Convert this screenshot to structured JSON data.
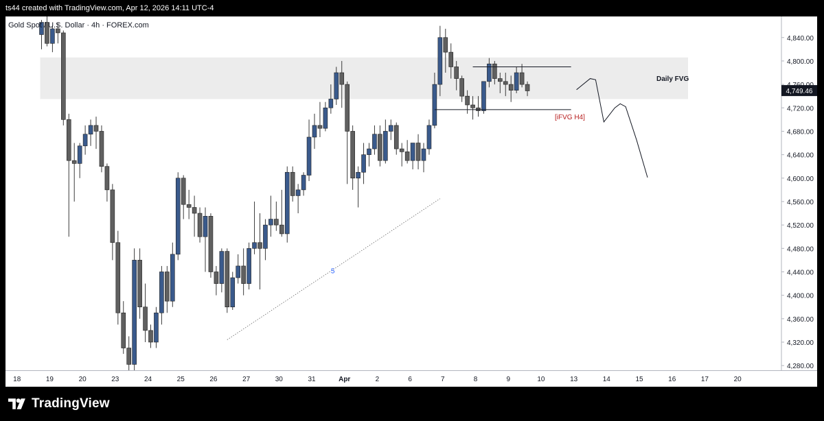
{
  "header": {
    "credit": "ts44 created with TradingView.com, Apr 12, 2026 14:11 UTC-4"
  },
  "symbol": {
    "title": "Gold Spot / U.S. Dollar · 4h · FOREX.com"
  },
  "colors": {
    "bull": "#3a5a8c",
    "bear": "#606060",
    "wick": "#3a3a3a",
    "zone": "#ececec",
    "ifvg": "#b71c1c"
  },
  "annotations": {
    "zone_label": "Daily FVG",
    "ifvg_label": "iFVG H4",
    "channel_label": "5"
  },
  "price_tag": "4,749.46",
  "branding": {
    "name": "TradingView",
    "logo": "tradingview-logo-icon"
  },
  "chart_data": {
    "type": "candlestick",
    "y_axis": {
      "range": [
        4272,
        4876
      ],
      "ticks": [
        4280,
        4320,
        4360,
        4400,
        4440,
        4480,
        4520,
        4560,
        4600,
        4640,
        4680,
        4720,
        4760,
        4800,
        4840
      ],
      "tick_labels": [
        "4,280.00",
        "4,320.00",
        "4,360.00",
        "4,400.00",
        "4,440.00",
        "4,480.00",
        "4,520.00",
        "4,560.00",
        "4,600.00",
        "4,640.00",
        "4,680.00",
        "4,720.00",
        "4,760.00",
        "4,800.00",
        "4,840.00"
      ]
    },
    "x_axis": {
      "labels": [
        {
          "text": "18",
          "idx": -4.5
        },
        {
          "text": "19",
          "idx": 1.5
        },
        {
          "text": "20",
          "idx": 7.5
        },
        {
          "text": "23",
          "idx": 13.5
        },
        {
          "text": "24",
          "idx": 19.5
        },
        {
          "text": "25",
          "idx": 25.5
        },
        {
          "text": "26",
          "idx": 31.5
        },
        {
          "text": "27",
          "idx": 37.5
        },
        {
          "text": "30",
          "idx": 43.5
        },
        {
          "text": "31",
          "idx": 49.5
        },
        {
          "text": "Apr",
          "idx": 55.5,
          "bold": true
        },
        {
          "text": "2",
          "idx": 61.5
        },
        {
          "text": "6",
          "idx": 67.5
        },
        {
          "text": "7",
          "idx": 73.5
        },
        {
          "text": "8",
          "idx": 79.5
        },
        {
          "text": "9",
          "idx": 85.5
        },
        {
          "text": "10",
          "idx": 91.5
        },
        {
          "text": "13",
          "idx": 97.5
        },
        {
          "text": "14",
          "idx": 103.5
        },
        {
          "text": "15",
          "idx": 109.5
        },
        {
          "text": "16",
          "idx": 115.5
        },
        {
          "text": "17",
          "idx": 121.5
        },
        {
          "text": "20",
          "idx": 127.5
        }
      ]
    },
    "candles": [
      [
        4845,
        4870,
        4820,
        4866
      ],
      [
        4866,
        4876,
        4825,
        4830
      ],
      [
        4830,
        4860,
        4815,
        4855
      ],
      [
        4855,
        4865,
        4830,
        4848
      ],
      [
        4848,
        4852,
        4690,
        4700
      ],
      [
        4700,
        4710,
        4500,
        4630
      ],
      [
        4630,
        4660,
        4560,
        4625
      ],
      [
        4625,
        4660,
        4600,
        4655
      ],
      [
        4655,
        4690,
        4640,
        4675
      ],
      [
        4675,
        4700,
        4655,
        4690
      ],
      [
        4690,
        4705,
        4650,
        4680
      ],
      [
        4680,
        4690,
        4610,
        4620
      ],
      [
        4620,
        4625,
        4560,
        4580
      ],
      [
        4580,
        4590,
        4460,
        4490
      ],
      [
        4490,
        4510,
        4350,
        4370
      ],
      [
        4370,
        4390,
        4300,
        4310
      ],
      [
        4310,
        4330,
        4270,
        4282
      ],
      [
        4282,
        4480,
        4270,
        4460
      ],
      [
        4460,
        4480,
        4360,
        4380
      ],
      [
        4380,
        4420,
        4320,
        4340
      ],
      [
        4340,
        4350,
        4310,
        4320
      ],
      [
        4320,
        4380,
        4310,
        4370
      ],
      [
        4370,
        4450,
        4350,
        4440
      ],
      [
        4440,
        4450,
        4370,
        4390
      ],
      [
        4390,
        4490,
        4380,
        4470
      ],
      [
        4470,
        4610,
        4460,
        4600
      ],
      [
        4600,
        4605,
        4530,
        4555
      ],
      [
        4555,
        4580,
        4530,
        4550
      ],
      [
        4550,
        4570,
        4500,
        4540
      ],
      [
        4540,
        4550,
        4490,
        4500
      ],
      [
        4500,
        4550,
        4440,
        4535
      ],
      [
        4535,
        4540,
        4430,
        4440
      ],
      [
        4440,
        4450,
        4400,
        4420
      ],
      [
        4420,
        4480,
        4405,
        4475
      ],
      [
        4475,
        4480,
        4370,
        4380
      ],
      [
        4380,
        4440,
        4375,
        4430
      ],
      [
        4430,
        4470,
        4420,
        4450
      ],
      [
        4450,
        4480,
        4400,
        4420
      ],
      [
        4420,
        4490,
        4410,
        4480
      ],
      [
        4480,
        4560,
        4470,
        4490
      ],
      [
        4490,
        4540,
        4410,
        4480
      ],
      [
        4480,
        4530,
        4460,
        4520
      ],
      [
        4520,
        4570,
        4500,
        4530
      ],
      [
        4530,
        4560,
        4510,
        4520
      ],
      [
        4520,
        4580,
        4500,
        4505
      ],
      [
        4505,
        4620,
        4490,
        4610
      ],
      [
        4610,
        4620,
        4560,
        4570
      ],
      [
        4570,
        4590,
        4540,
        4580
      ],
      [
        4580,
        4610,
        4570,
        4605
      ],
      [
        4605,
        4700,
        4595,
        4670
      ],
      [
        4670,
        4710,
        4650,
        4690
      ],
      [
        4690,
        4730,
        4670,
        4685
      ],
      [
        4685,
        4730,
        4680,
        4720
      ],
      [
        4720,
        4760,
        4710,
        4735
      ],
      [
        4735,
        4790,
        4725,
        4780
      ],
      [
        4780,
        4800,
        4720,
        4760
      ],
      [
        4760,
        4765,
        4590,
        4680
      ],
      [
        4680,
        4690,
        4580,
        4600
      ],
      [
        4600,
        4620,
        4550,
        4610
      ],
      [
        4610,
        4660,
        4590,
        4640
      ],
      [
        4640,
        4660,
        4620,
        4650
      ],
      [
        4650,
        4690,
        4640,
        4675
      ],
      [
        4675,
        4690,
        4620,
        4630
      ],
      [
        4630,
        4700,
        4625,
        4680
      ],
      [
        4680,
        4700,
        4665,
        4690
      ],
      [
        4690,
        4695,
        4640,
        4650
      ],
      [
        4650,
        4660,
        4620,
        4645
      ],
      [
        4645,
        4665,
        4625,
        4630
      ],
      [
        4630,
        4660,
        4615,
        4660
      ],
      [
        4660,
        4675,
        4615,
        4630
      ],
      [
        4630,
        4660,
        4610,
        4650
      ],
      [
        4650,
        4700,
        4640,
        4690
      ],
      [
        4690,
        4780,
        4685,
        4760
      ],
      [
        4760,
        4860,
        4740,
        4840
      ],
      [
        4840,
        4855,
        4780,
        4815
      ],
      [
        4815,
        4830,
        4770,
        4790
      ],
      [
        4790,
        4800,
        4750,
        4770
      ],
      [
        4770,
        4775,
        4730,
        4740
      ],
      [
        4740,
        4750,
        4710,
        4725
      ],
      [
        4725,
        4740,
        4700,
        4720
      ],
      [
        4720,
        4740,
        4705,
        4715
      ],
      [
        4715,
        4760,
        4710,
        4765
      ],
      [
        4765,
        4805,
        4755,
        4795
      ],
      [
        4795,
        4800,
        4760,
        4770
      ],
      [
        4770,
        4780,
        4745,
        4765
      ],
      [
        4765,
        4780,
        4740,
        4760
      ],
      [
        4760,
        4775,
        4730,
        4750
      ],
      [
        4750,
        4790,
        4745,
        4780
      ],
      [
        4780,
        4795,
        4755,
        4760
      ],
      [
        4760,
        4765,
        4740,
        4749
      ]
    ],
    "zone": {
      "label": "Daily FVG",
      "low": 4735,
      "high": 4806
    },
    "levels": [
      {
        "price": 4790,
        "from_idx": 79,
        "to_idx": 97
      },
      {
        "price": 4717,
        "from_idx": 72,
        "to_idx": 97,
        "label": "iFVG H4"
      }
    ],
    "channel_line": {
      "from": {
        "idx": 34,
        "price": 4324
      },
      "to": {
        "idx": 73,
        "price": 4565
      },
      "label": "5"
    },
    "projection": [
      [
        98,
        4751
      ],
      [
        100.5,
        4770
      ],
      [
        101.5,
        4768
      ],
      [
        103,
        4696
      ],
      [
        105,
        4720
      ],
      [
        106,
        4727
      ],
      [
        107,
        4722
      ],
      [
        109,
        4665
      ],
      [
        111,
        4601
      ]
    ],
    "last_price": 4749.46
  }
}
